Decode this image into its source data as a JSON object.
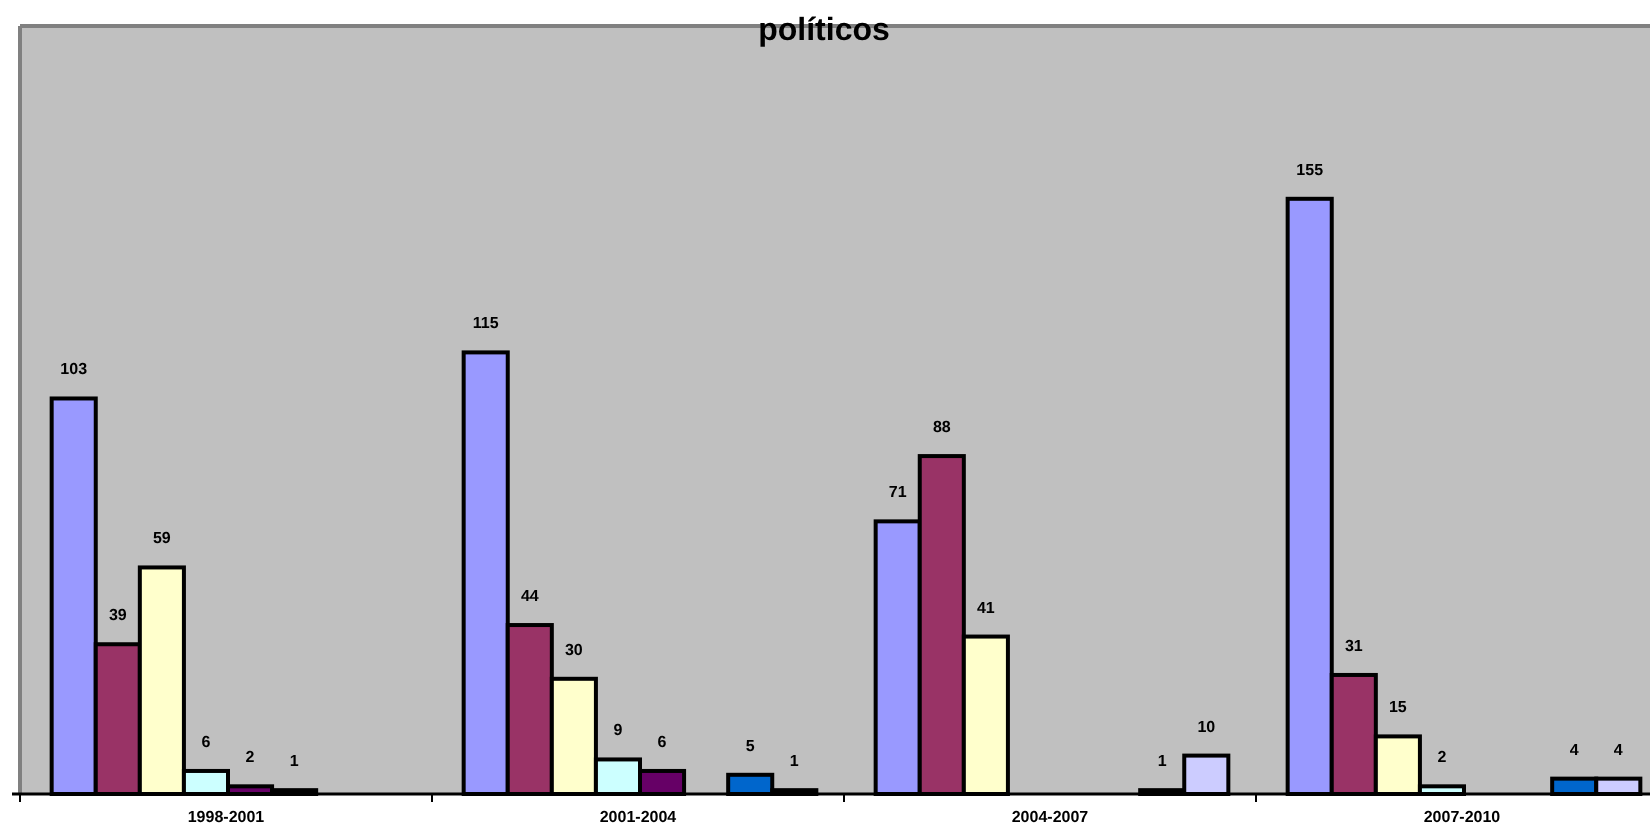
{
  "chart_data": {
    "type": "bar",
    "title": "políticos",
    "categories": [
      "1998-2001",
      "2001-2004",
      "2004-2007",
      "2007-2010"
    ],
    "series": [
      {
        "color": "#9999ff",
        "values": [
          103,
          115,
          71,
          155
        ]
      },
      {
        "color": "#993366",
        "values": [
          39,
          44,
          88,
          31
        ]
      },
      {
        "color": "#ffffcc",
        "values": [
          59,
          30,
          41,
          15
        ]
      },
      {
        "color": "#ccffff",
        "values": [
          6,
          9,
          null,
          2
        ]
      },
      {
        "color": "#660066",
        "values": [
          2,
          6,
          null,
          null
        ]
      },
      {
        "color": "#ff8080",
        "values": [
          1,
          null,
          null,
          null
        ]
      },
      {
        "color": "#0066cc",
        "values": [
          null,
          5,
          1,
          4
        ]
      },
      {
        "color": "#ccccff",
        "values": [
          null,
          1,
          10,
          4
        ]
      }
    ],
    "ylim": [
      0,
      200
    ],
    "data_labels": true
  }
}
